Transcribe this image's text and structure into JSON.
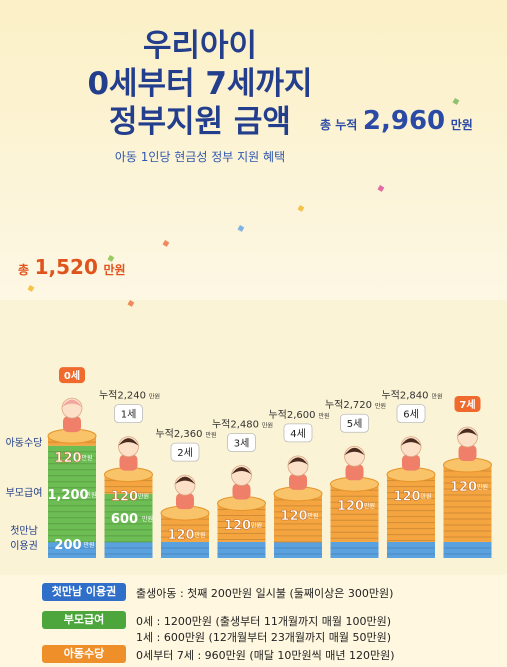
{
  "header": {
    "title_lines": [
      "우리아이",
      "0세부터 7세까지",
      "정부지원 금액"
    ],
    "subtitle": "아동 1인당 현금성 정부 지원 혜택",
    "total_prefix": "총 누적",
    "total_value": "2,960",
    "total_unit": "만원"
  },
  "total_age0": {
    "prefix": "총",
    "value": "1,520",
    "unit": "만원"
  },
  "row_labels": [
    "아동수당",
    "부모급여",
    "첫만남 이용권"
  ],
  "chart_data": {
    "type": "bar",
    "stacked": true,
    "unit": "만원",
    "categories": [
      "0세",
      "1세",
      "2세",
      "3세",
      "4세",
      "5세",
      "6세",
      "7세"
    ],
    "cumulative_labels": [
      "",
      "누적2,240",
      "누적2,360",
      "누적2,480",
      "누적2,600",
      "누적2,720",
      "누적2,840",
      ""
    ],
    "cumulative_totals": [
      1520,
      2240,
      2360,
      2480,
      2600,
      2720,
      2840,
      2960
    ],
    "series": [
      {
        "name": "첫만남 이용권",
        "values": [
          200,
          200,
          200,
          200,
          200,
          200,
          200,
          200
        ],
        "color": "#5aa1e0",
        "label": "200",
        "show_label_at": [
          0
        ]
      },
      {
        "name": "부모급여",
        "values": [
          1200,
          600,
          0,
          0,
          0,
          0,
          0,
          0
        ],
        "color": "#6cbd53",
        "labels": [
          "1,200",
          "600"
        ]
      },
      {
        "name": "아동수당",
        "values": [
          120,
          240,
          360,
          480,
          600,
          720,
          840,
          960
        ],
        "color": "#f5a540",
        "label": "120"
      }
    ],
    "value_unit_small": "만원"
  },
  "legend": [
    {
      "badge": "첫만남 이용권",
      "color": "#2f6fc9",
      "lines": [
        "출생아동 : 첫째 200만원 일시불 (둘째이상은 300만원)"
      ]
    },
    {
      "badge": "부모급여",
      "color": "#4ca63c",
      "lines": [
        "0세 : 1200만원 (출생부터 11개월까지 매월 100만원)",
        "1세 : 600만원 (12개월부터 23개월까지 매월 50만원)"
      ]
    },
    {
      "badge": "아동수당",
      "color": "#ef8f2a",
      "lines": [
        "0세부터 7세 : 960만원 (매달 10만원씩 매년 120만원)"
      ]
    }
  ]
}
